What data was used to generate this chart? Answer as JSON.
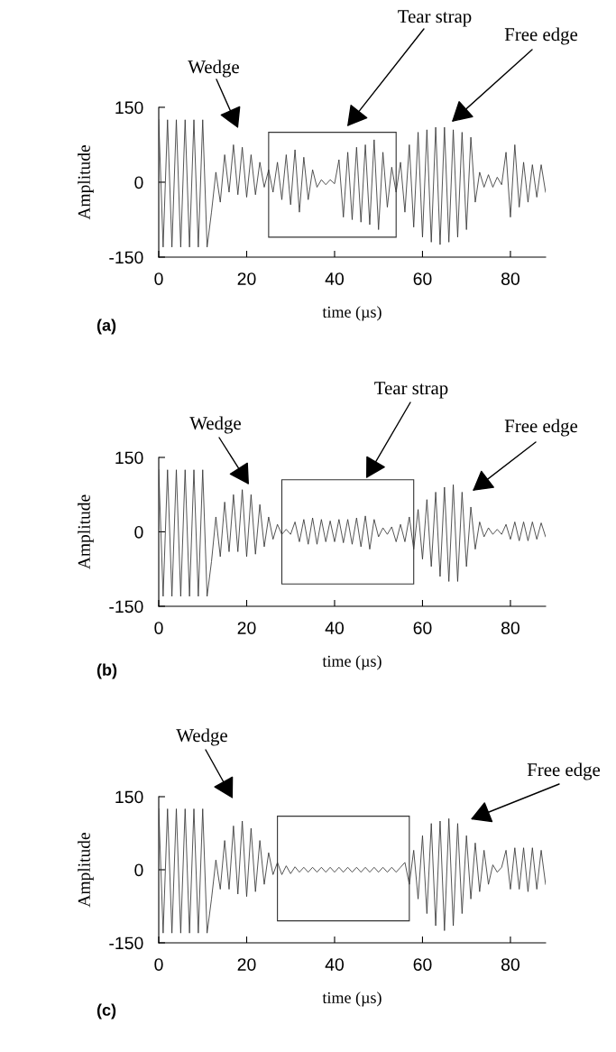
{
  "chart_data": [
    {
      "type": "line",
      "xlabel": "time (µs)",
      "ylabel": "Amplitude",
      "xlim": [
        0,
        88
      ],
      "ylim": [
        -150,
        150
      ],
      "xticks": [
        0,
        20,
        40,
        60,
        80
      ],
      "yticks": [
        -150,
        0,
        150
      ],
      "grid": false,
      "legend": false,
      "marker": "none",
      "line_style": "solid",
      "annotations": [
        "Wedge",
        "Tear strap",
        "Free edge",
        "(a)"
      ],
      "series": [
        {
          "color": "#333333",
          "x": [
            0,
            1,
            2,
            3,
            4,
            5,
            6,
            7,
            8,
            9,
            10,
            11,
            12,
            13,
            14,
            15,
            16,
            17,
            18,
            19,
            20,
            21,
            22,
            23,
            24,
            25,
            26,
            27,
            28,
            29,
            30,
            31,
            32,
            33,
            34,
            35,
            36,
            37,
            38,
            39,
            40,
            41,
            42,
            43,
            44,
            45,
            46,
            47,
            48,
            49,
            50,
            51,
            52,
            53,
            54,
            55,
            56,
            57,
            58,
            59,
            60,
            61,
            62,
            63,
            64,
            65,
            66,
            67,
            68,
            69,
            70,
            71,
            72,
            73,
            74,
            75,
            76,
            77,
            78,
            79,
            80,
            81,
            82,
            83,
            84,
            85,
            86,
            87,
            88
          ],
          "values": [
            125,
            -130,
            125,
            -130,
            125,
            -130,
            125,
            -130,
            125,
            -130,
            125,
            -130,
            -60,
            20,
            -40,
            55,
            -20,
            75,
            -25,
            70,
            -30,
            55,
            -25,
            40,
            -10,
            25,
            -20,
            40,
            -35,
            55,
            -45,
            65,
            -60,
            50,
            -35,
            25,
            -10,
            5,
            -5,
            5,
            -3,
            45,
            -70,
            60,
            -75,
            70,
            -80,
            75,
            -85,
            85,
            -95,
            60,
            -50,
            30,
            -20,
            40,
            -60,
            75,
            -90,
            100,
            -110,
            105,
            -120,
            110,
            -125,
            110,
            -120,
            105,
            -110,
            100,
            -95,
            90,
            -40,
            20,
            -10,
            15,
            -10,
            10,
            -5,
            60,
            -70,
            75,
            -50,
            40,
            -40,
            35,
            -30,
            35,
            -20
          ]
        }
      ]
    },
    {
      "type": "line",
      "xlabel": "time (µs)",
      "ylabel": "Amplitude",
      "xlim": [
        0,
        88
      ],
      "ylim": [
        -150,
        150
      ],
      "xticks": [
        0,
        20,
        40,
        60,
        80
      ],
      "yticks": [
        -150,
        0,
        150
      ],
      "grid": false,
      "legend": false,
      "marker": "none",
      "line_style": "solid",
      "annotations": [
        "Wedge",
        "Tear strap",
        "Free edge",
        "(b)"
      ],
      "series": [
        {
          "color": "#333333",
          "x": [
            0,
            1,
            2,
            3,
            4,
            5,
            6,
            7,
            8,
            9,
            10,
            11,
            12,
            13,
            14,
            15,
            16,
            17,
            18,
            19,
            20,
            21,
            22,
            23,
            24,
            25,
            26,
            27,
            28,
            29,
            30,
            31,
            32,
            33,
            34,
            35,
            36,
            37,
            38,
            39,
            40,
            41,
            42,
            43,
            44,
            45,
            46,
            47,
            48,
            49,
            50,
            51,
            52,
            53,
            54,
            55,
            56,
            57,
            58,
            59,
            60,
            61,
            62,
            63,
            64,
            65,
            66,
            67,
            68,
            69,
            70,
            71,
            72,
            73,
            74,
            75,
            76,
            77,
            78,
            79,
            80,
            81,
            82,
            83,
            84,
            85,
            86,
            87,
            88
          ],
          "values": [
            125,
            -130,
            125,
            -130,
            125,
            -130,
            125,
            -130,
            125,
            -130,
            125,
            -130,
            -60,
            30,
            -50,
            60,
            -40,
            75,
            -40,
            85,
            -50,
            75,
            -45,
            55,
            -30,
            30,
            -15,
            15,
            -5,
            5,
            -5,
            20,
            -20,
            25,
            -25,
            28,
            -25,
            25,
            -20,
            22,
            -20,
            25,
            -22,
            25,
            -25,
            28,
            -30,
            32,
            -35,
            25,
            -10,
            8,
            -5,
            10,
            -20,
            15,
            -20,
            30,
            -35,
            45,
            -55,
            65,
            -70,
            80,
            -90,
            90,
            -100,
            95,
            -100,
            80,
            -70,
            50,
            -35,
            20,
            -10,
            8,
            -5,
            5,
            -5,
            15,
            -15,
            20,
            -18,
            20,
            -18,
            20,
            -15,
            18,
            -10
          ]
        }
      ]
    },
    {
      "type": "line",
      "xlabel": "time (µs)",
      "ylabel": "Amplitude",
      "xlim": [
        0,
        88
      ],
      "ylim": [
        -150,
        150
      ],
      "xticks": [
        0,
        20,
        40,
        60,
        80
      ],
      "yticks": [
        -150,
        0,
        150
      ],
      "grid": false,
      "legend": false,
      "marker": "none",
      "line_style": "solid",
      "annotations": [
        "Wedge",
        "Free edge",
        "(c)"
      ],
      "series": [
        {
          "color": "#333333",
          "x": [
            0,
            1,
            2,
            3,
            4,
            5,
            6,
            7,
            8,
            9,
            10,
            11,
            12,
            13,
            14,
            15,
            16,
            17,
            18,
            19,
            20,
            21,
            22,
            23,
            24,
            25,
            26,
            27,
            28,
            29,
            30,
            31,
            32,
            33,
            34,
            35,
            36,
            37,
            38,
            39,
            40,
            41,
            42,
            43,
            44,
            45,
            46,
            47,
            48,
            49,
            50,
            51,
            52,
            53,
            54,
            55,
            56,
            57,
            58,
            59,
            60,
            61,
            62,
            63,
            64,
            65,
            66,
            67,
            68,
            69,
            70,
            71,
            72,
            73,
            74,
            75,
            76,
            77,
            78,
            79,
            80,
            81,
            82,
            83,
            84,
            85,
            86,
            87,
            88
          ],
          "values": [
            125,
            -130,
            125,
            -130,
            125,
            -130,
            125,
            -130,
            125,
            -130,
            125,
            -130,
            -60,
            20,
            -40,
            60,
            -40,
            90,
            -50,
            100,
            -55,
            85,
            -45,
            60,
            -30,
            35,
            -10,
            15,
            -10,
            8,
            -8,
            6,
            -5,
            5,
            -5,
            5,
            -5,
            5,
            -5,
            5,
            -5,
            5,
            -5,
            5,
            -5,
            5,
            -5,
            5,
            -5,
            5,
            -5,
            5,
            -5,
            5,
            -5,
            5,
            15,
            -30,
            40,
            -60,
            70,
            -90,
            95,
            -115,
            100,
            -125,
            105,
            -115,
            95,
            -90,
            70,
            -60,
            55,
            -45,
            40,
            -30,
            10,
            -5,
            5,
            40,
            -40,
            45,
            -40,
            45,
            -45,
            45,
            -40,
            40,
            -30
          ]
        }
      ]
    }
  ]
}
